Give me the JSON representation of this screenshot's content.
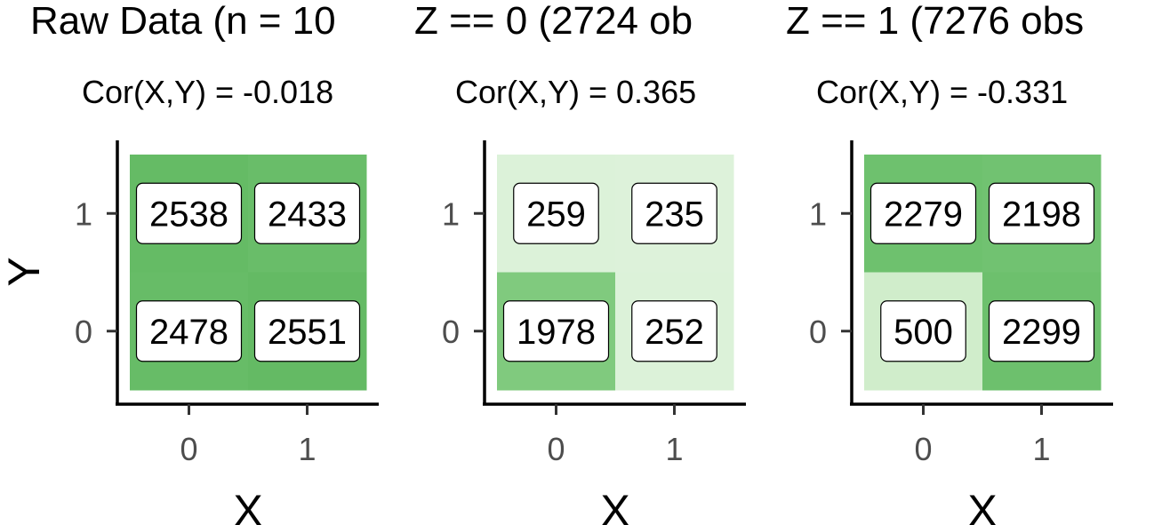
{
  "chart_data": [
    {
      "type": "heatmap",
      "title": "Raw Data (n = 10",
      "subtitle": "Cor(X,Y) = -0.018",
      "xlabel": "X",
      "ylabel": "Y",
      "x_categories": [
        "0",
        "1"
      ],
      "y_categories": [
        "0",
        "1"
      ],
      "cells": [
        {
          "x": "0",
          "y": "1",
          "value": 2538,
          "color": "#65bb65"
        },
        {
          "x": "1",
          "y": "1",
          "value": 2433,
          "color": "#69bd69"
        },
        {
          "x": "0",
          "y": "0",
          "value": 2478,
          "color": "#67bc67"
        },
        {
          "x": "1",
          "y": "0",
          "value": 2551,
          "color": "#64ba64"
        }
      ]
    },
    {
      "type": "heatmap",
      "title": "Z == 0 (2724 ob",
      "subtitle": "Cor(X,Y) = 0.365",
      "xlabel": "X",
      "ylabel": "",
      "x_categories": [
        "0",
        "1"
      ],
      "y_categories": [
        "0",
        "1"
      ],
      "cells": [
        {
          "x": "0",
          "y": "1",
          "value": 259,
          "color": "#dcf2d9"
        },
        {
          "x": "1",
          "y": "1",
          "value": 235,
          "color": "#ddf2da"
        },
        {
          "x": "0",
          "y": "0",
          "value": 1978,
          "color": "#80ca7e"
        },
        {
          "x": "1",
          "y": "0",
          "value": 252,
          "color": "#dcf2d9"
        }
      ]
    },
    {
      "type": "heatmap",
      "title": "Z == 1 (7276 obs",
      "subtitle": "Cor(X,Y) = -0.331",
      "xlabel": "X",
      "ylabel": "",
      "x_categories": [
        "0",
        "1"
      ],
      "y_categories": [
        "0",
        "1"
      ],
      "cells": [
        {
          "x": "0",
          "y": "1",
          "value": 2279,
          "color": "#6ec16e"
        },
        {
          "x": "1",
          "y": "1",
          "value": 2198,
          "color": "#71c271"
        },
        {
          "x": "0",
          "y": "0",
          "value": 500,
          "color": "#d0edcb"
        },
        {
          "x": "1",
          "y": "0",
          "value": 2299,
          "color": "#6dc06d"
        }
      ]
    }
  ]
}
